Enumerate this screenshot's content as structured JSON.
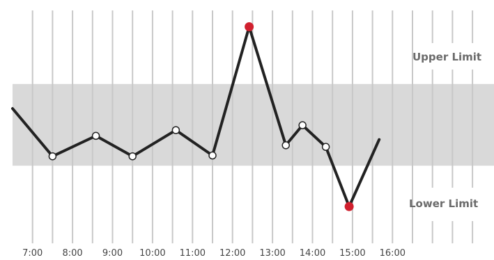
{
  "chart_data": {
    "type": "line",
    "x_tick_labels": [
      "7:00",
      "8:00",
      "9:00",
      "10:00",
      "11:00",
      "12:00",
      "13:00",
      "14:00",
      "15:00",
      "16:00"
    ],
    "xlim": [
      "6:30",
      "18:00"
    ],
    "ylim": [
      -2.9,
      2.8
    ],
    "band": {
      "lower": -1,
      "upper": 1,
      "color": "#d9d9d9"
    },
    "upper_limit_label": "Upper Limit",
    "lower_limit_label": "Lower Limit",
    "series": [
      {
        "line_color": "#222222",
        "points": [
          {
            "x": "6:30",
            "y": 0.4,
            "marker": "none"
          },
          {
            "x": "7:30",
            "y": -0.77,
            "marker": "normal"
          },
          {
            "x": "8:35",
            "y": -0.27,
            "marker": "normal"
          },
          {
            "x": "9:30",
            "y": -0.77,
            "marker": "normal"
          },
          {
            "x": "10:35",
            "y": -0.13,
            "marker": "normal"
          },
          {
            "x": "11:30",
            "y": -0.75,
            "marker": "normal"
          },
          {
            "x": "12:25",
            "y": 2.4,
            "marker": "out"
          },
          {
            "x": "13:20",
            "y": -0.5,
            "marker": "normal"
          },
          {
            "x": "13:45",
            "y": -0.01,
            "marker": "normal"
          },
          {
            "x": "14:20",
            "y": -0.54,
            "marker": "normal"
          },
          {
            "x": "14:55",
            "y": -2.0,
            "marker": "out"
          },
          {
            "x": "15:40",
            "y": -0.36,
            "marker": "none"
          }
        ]
      }
    ],
    "marker_colors": {
      "normal": "#ffffff",
      "out": "#d0202e"
    },
    "grid": true,
    "grid_color": "#c8c8c8"
  }
}
